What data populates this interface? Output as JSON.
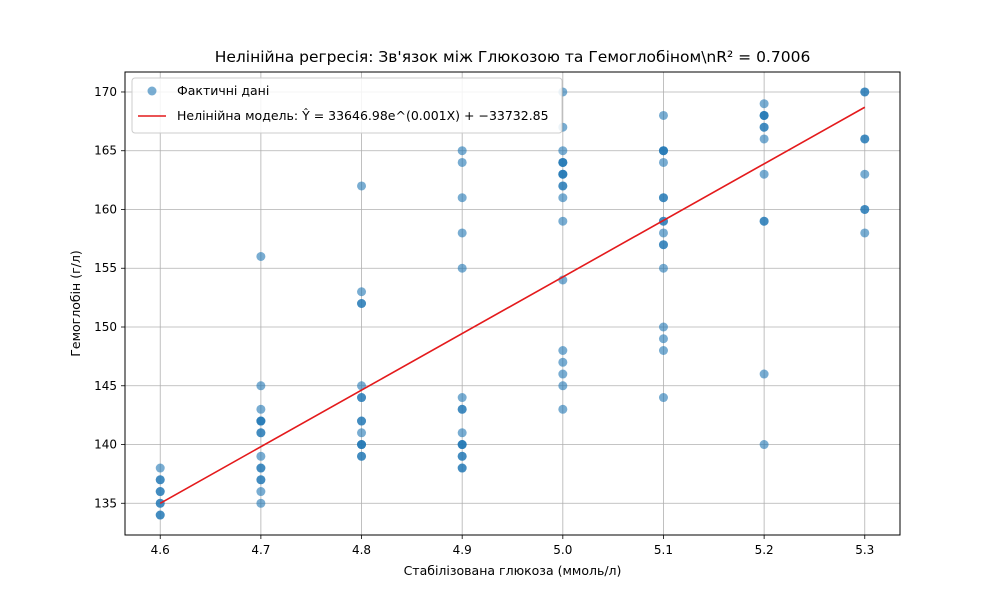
{
  "chart_data": {
    "type": "scatter",
    "title": "Нелінійна регресія: Зв'язок між Глюкозою та Гемоглобіном\\nR² = 0.7006",
    "xlabel": "Стабілізована глюкоза (ммоль/л)",
    "ylabel": "Гемоглобін (г/л)",
    "xlim": [
      4.565,
      5.335
    ],
    "ylim": [
      132.3,
      171.7
    ],
    "xticks": [
      "4.6",
      "4.7",
      "4.8",
      "4.9",
      "5.0",
      "5.1",
      "5.2",
      "5.3"
    ],
    "yticks": [
      "135",
      "140",
      "145",
      "150",
      "155",
      "160",
      "165",
      "170"
    ],
    "grid": true,
    "legend_position": "top-left",
    "colors": {
      "points": "#1f77b4",
      "fit_line": "#e41a1c",
      "grid": "#b0b0b0"
    },
    "series": [
      {
        "name": "Фактичні дані",
        "type": "scatter",
        "x": [
          4.6,
          4.6,
          4.6,
          4.6,
          4.6,
          4.6,
          4.6,
          4.6,
          4.6,
          4.7,
          4.7,
          4.7,
          4.7,
          4.7,
          4.7,
          4.7,
          4.7,
          4.7,
          4.7,
          4.7,
          4.7,
          4.7,
          4.7,
          4.7,
          4.8,
          4.8,
          4.8,
          4.8,
          4.8,
          4.8,
          4.8,
          4.8,
          4.8,
          4.8,
          4.8,
          4.8,
          4.8,
          4.8,
          4.8,
          4.9,
          4.9,
          4.9,
          4.9,
          4.9,
          4.9,
          4.9,
          4.9,
          4.9,
          4.9,
          4.9,
          4.9,
          4.9,
          4.9,
          4.9,
          4.9,
          5.0,
          5.0,
          5.0,
          5.0,
          5.0,
          5.0,
          5.0,
          5.0,
          5.0,
          5.0,
          5.0,
          5.0,
          5.0,
          5.0,
          5.0,
          5.0,
          5.0,
          5.0,
          5.0,
          5.1,
          5.1,
          5.1,
          5.1,
          5.1,
          5.1,
          5.1,
          5.1,
          5.1,
          5.1,
          5.1,
          5.1,
          5.1,
          5.1,
          5.1,
          5.1,
          5.1,
          5.2,
          5.2,
          5.2,
          5.2,
          5.2,
          5.2,
          5.2,
          5.2,
          5.2,
          5.2,
          5.2,
          5.2,
          5.3,
          5.3,
          5.3,
          5.3,
          5.3,
          5.3,
          5.3,
          5.3
        ],
        "y": [
          138,
          137,
          137,
          136,
          136,
          135,
          135,
          134,
          134,
          156,
          145,
          143,
          142,
          142,
          141,
          141,
          139,
          138,
          138,
          137,
          137,
          136,
          135,
          142,
          162,
          153,
          152,
          152,
          145,
          144,
          144,
          142,
          142,
          141,
          140,
          140,
          139,
          139,
          140,
          165,
          164,
          161,
          158,
          155,
          144,
          143,
          143,
          141,
          140,
          140,
          139,
          138,
          138,
          140,
          139,
          170,
          167,
          165,
          164,
          164,
          163,
          163,
          162,
          162,
          161,
          159,
          154,
          148,
          147,
          146,
          145,
          143,
          164,
          163,
          168,
          165,
          165,
          164,
          161,
          161,
          159,
          159,
          158,
          157,
          157,
          155,
          150,
          149,
          148,
          144,
          165,
          169,
          168,
          168,
          167,
          167,
          166,
          163,
          159,
          159,
          146,
          140,
          168,
          170,
          170,
          166,
          166,
          163,
          160,
          160,
          158
        ]
      },
      {
        "name": "Нелінійна модель: Ŷ = 33646.98e^(0.001X) + −33732.85",
        "type": "line",
        "x": [
          4.6,
          5.3
        ],
        "y": [
          135.0,
          168.7
        ]
      }
    ]
  }
}
